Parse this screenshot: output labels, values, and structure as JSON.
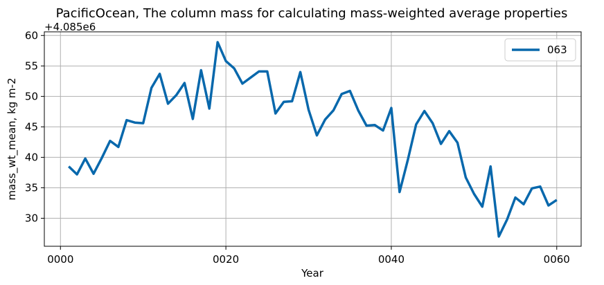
{
  "chart_data": {
    "type": "line",
    "title": "PacificOcean, The column mass for calculating mass-weighted average properties",
    "xlabel": "Year",
    "ylabel": "mass_wt_mean, kg m-2",
    "y_offset_label": "+4.085e6",
    "y_offset_value": 4085000,
    "xlim": [
      -1.95,
      62.95
    ],
    "ylim": [
      25.4,
      60.6
    ],
    "x_ticks": [
      0,
      20,
      40,
      60
    ],
    "x_tick_labels": [
      "0000",
      "0020",
      "0040",
      "0060"
    ],
    "y_ticks": [
      30,
      35,
      40,
      45,
      50,
      55,
      60
    ],
    "y_tick_labels": [
      "30",
      "35",
      "40",
      "45",
      "50",
      "55",
      "60"
    ],
    "grid": true,
    "legend_position": "top-right",
    "colors": {
      "series": "#0868ac",
      "grid": "#b0b0b0",
      "axis": "#000000"
    },
    "series": [
      {
        "name": "063",
        "x": [
          1,
          2,
          3,
          4,
          5,
          6,
          7,
          8,
          9,
          10,
          11,
          12,
          13,
          14,
          15,
          16,
          17,
          18,
          19,
          20,
          21,
          22,
          23,
          24,
          25,
          26,
          27,
          28,
          29,
          30,
          31,
          32,
          33,
          34,
          35,
          36,
          37,
          38,
          39,
          40,
          41,
          42,
          43,
          44,
          45,
          46,
          47,
          48,
          49,
          50,
          51,
          52,
          53,
          54,
          55,
          56,
          57,
          58,
          59,
          60
        ],
        "values": [
          38.5,
          37.2,
          39.8,
          37.3,
          39.9,
          42.7,
          41.7,
          46.1,
          45.7,
          45.6,
          51.4,
          53.7,
          48.8,
          50.2,
          52.2,
          46.3,
          54.3,
          48.0,
          58.9,
          55.8,
          54.6,
          52.1,
          53.1,
          54.1,
          54.1,
          47.2,
          49.1,
          49.2,
          54.0,
          47.8,
          43.6,
          46.2,
          47.7,
          50.4,
          50.9,
          47.7,
          45.2,
          45.3,
          44.4,
          48.1,
          34.3,
          39.6,
          45.4,
          47.6,
          45.6,
          42.2,
          44.3,
          42.4,
          36.7,
          34.0,
          31.9,
          38.5,
          27.0,
          29.8,
          33.4,
          32.3,
          34.9,
          35.2,
          32.1,
          33.0
        ]
      }
    ]
  }
}
